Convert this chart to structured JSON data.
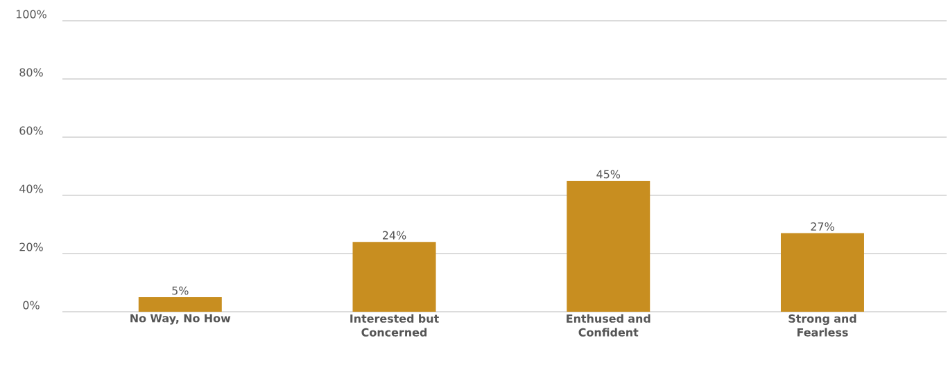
{
  "chart_data": {
    "type": "bar",
    "categories": [
      "No Way, No How",
      "Interested but Concerned",
      "Enthused and Confident",
      "Strong and Fearless"
    ],
    "values": [
      5,
      24,
      45,
      27
    ],
    "value_labels": [
      "5%",
      "24%",
      "45%",
      "27%"
    ],
    "color": "#c88e20",
    "ylim": [
      0,
      100
    ],
    "yticks": [
      {
        "value": 0,
        "label": "0%"
      },
      {
        "value": 20,
        "label": "20%"
      },
      {
        "value": 40,
        "label": "40%"
      },
      {
        "value": 60,
        "label": "60%"
      },
      {
        "value": 80,
        "label": "80%"
      },
      {
        "value": 100,
        "label": "100%"
      }
    ],
    "grid": "y"
  }
}
